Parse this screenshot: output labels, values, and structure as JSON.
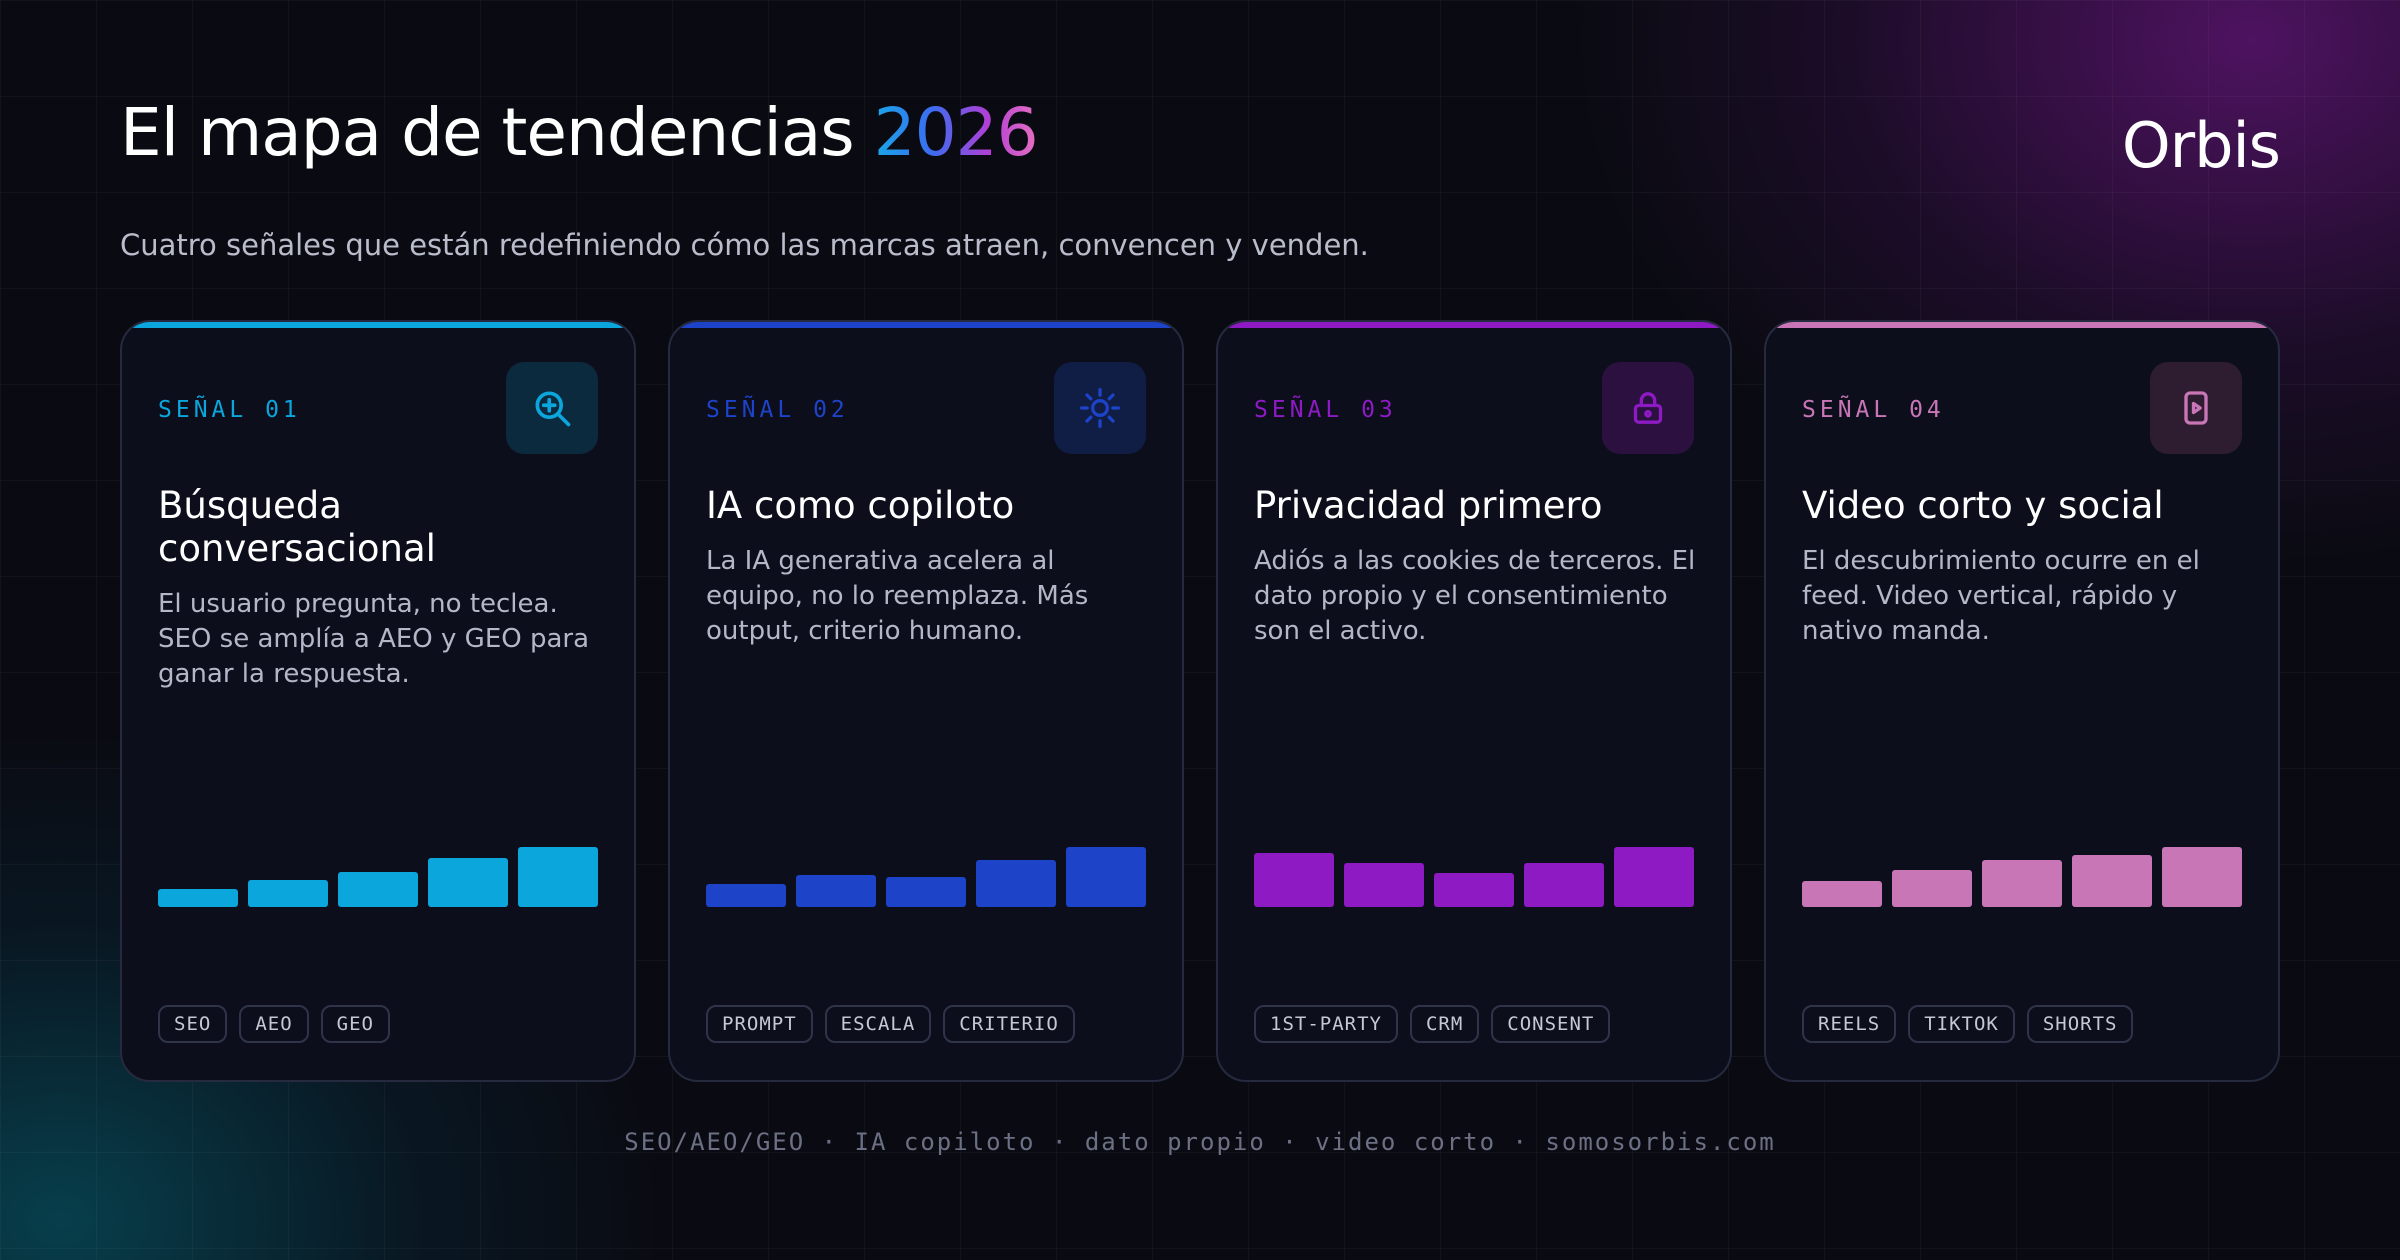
{
  "header": {
    "title": "El mapa de tendencias",
    "year": "2026",
    "brand": "Orbis",
    "subtitle": "Cuatro señales que están redefiniendo cómo las marcas atraen, convencen y venden."
  },
  "cards": [
    {
      "label": "SEÑAL 01",
      "title": "Búsqueda conversacional",
      "description": "El usuario pregunta, no teclea. SEO se amplía a AEO y GEO para ganar la respuesta.",
      "icon": "search-plus-icon",
      "accent": "#0aa6dc",
      "icon_bg": "#0b2a3e",
      "bar_values": [
        0.3,
        0.45,
        0.58,
        0.82,
        1.0
      ],
      "tags": [
        "SEO",
        "AEO",
        "GEO"
      ]
    },
    {
      "label": "SEÑAL 02",
      "title": "IA como copiloto",
      "description": "La IA generativa acelera al equipo, no lo reemplaza. Más output, criterio humano.",
      "icon": "sun-icon",
      "accent": "#1d43c8",
      "icon_bg": "#101d44",
      "bar_values": [
        0.38,
        0.53,
        0.5,
        0.78,
        1.0
      ],
      "tags": [
        "PROMPT",
        "ESCALA",
        "CRITERIO"
      ]
    },
    {
      "label": "SEÑAL 03",
      "title": "Privacidad primero",
      "description": "Adiós a las cookies de terceros. El dato propio y el consentimiento son el activo.",
      "icon": "lock-icon",
      "accent": "#8e1ac4",
      "icon_bg": "#2b1040",
      "bar_values": [
        0.9,
        0.73,
        0.56,
        0.73,
        1.0
      ],
      "tags": [
        "1ST-PARTY",
        "CRM",
        "CONSENT"
      ]
    },
    {
      "label": "SEÑAL 04",
      "title": "Video corto y social",
      "description": "El descubrimiento ocurre en el feed. Video vertical, rápido y nativo manda.",
      "icon": "play-video-icon",
      "accent": "#c976b7",
      "icon_bg": "#2e1c30",
      "bar_values": [
        0.43,
        0.62,
        0.79,
        0.87,
        1.0
      ],
      "tags": [
        "REELS",
        "TIKTOK",
        "SHORTS"
      ]
    }
  ],
  "footer": "SEO/AEO/GEO · IA copiloto · dato propio · video corto · somosorbis.com"
}
